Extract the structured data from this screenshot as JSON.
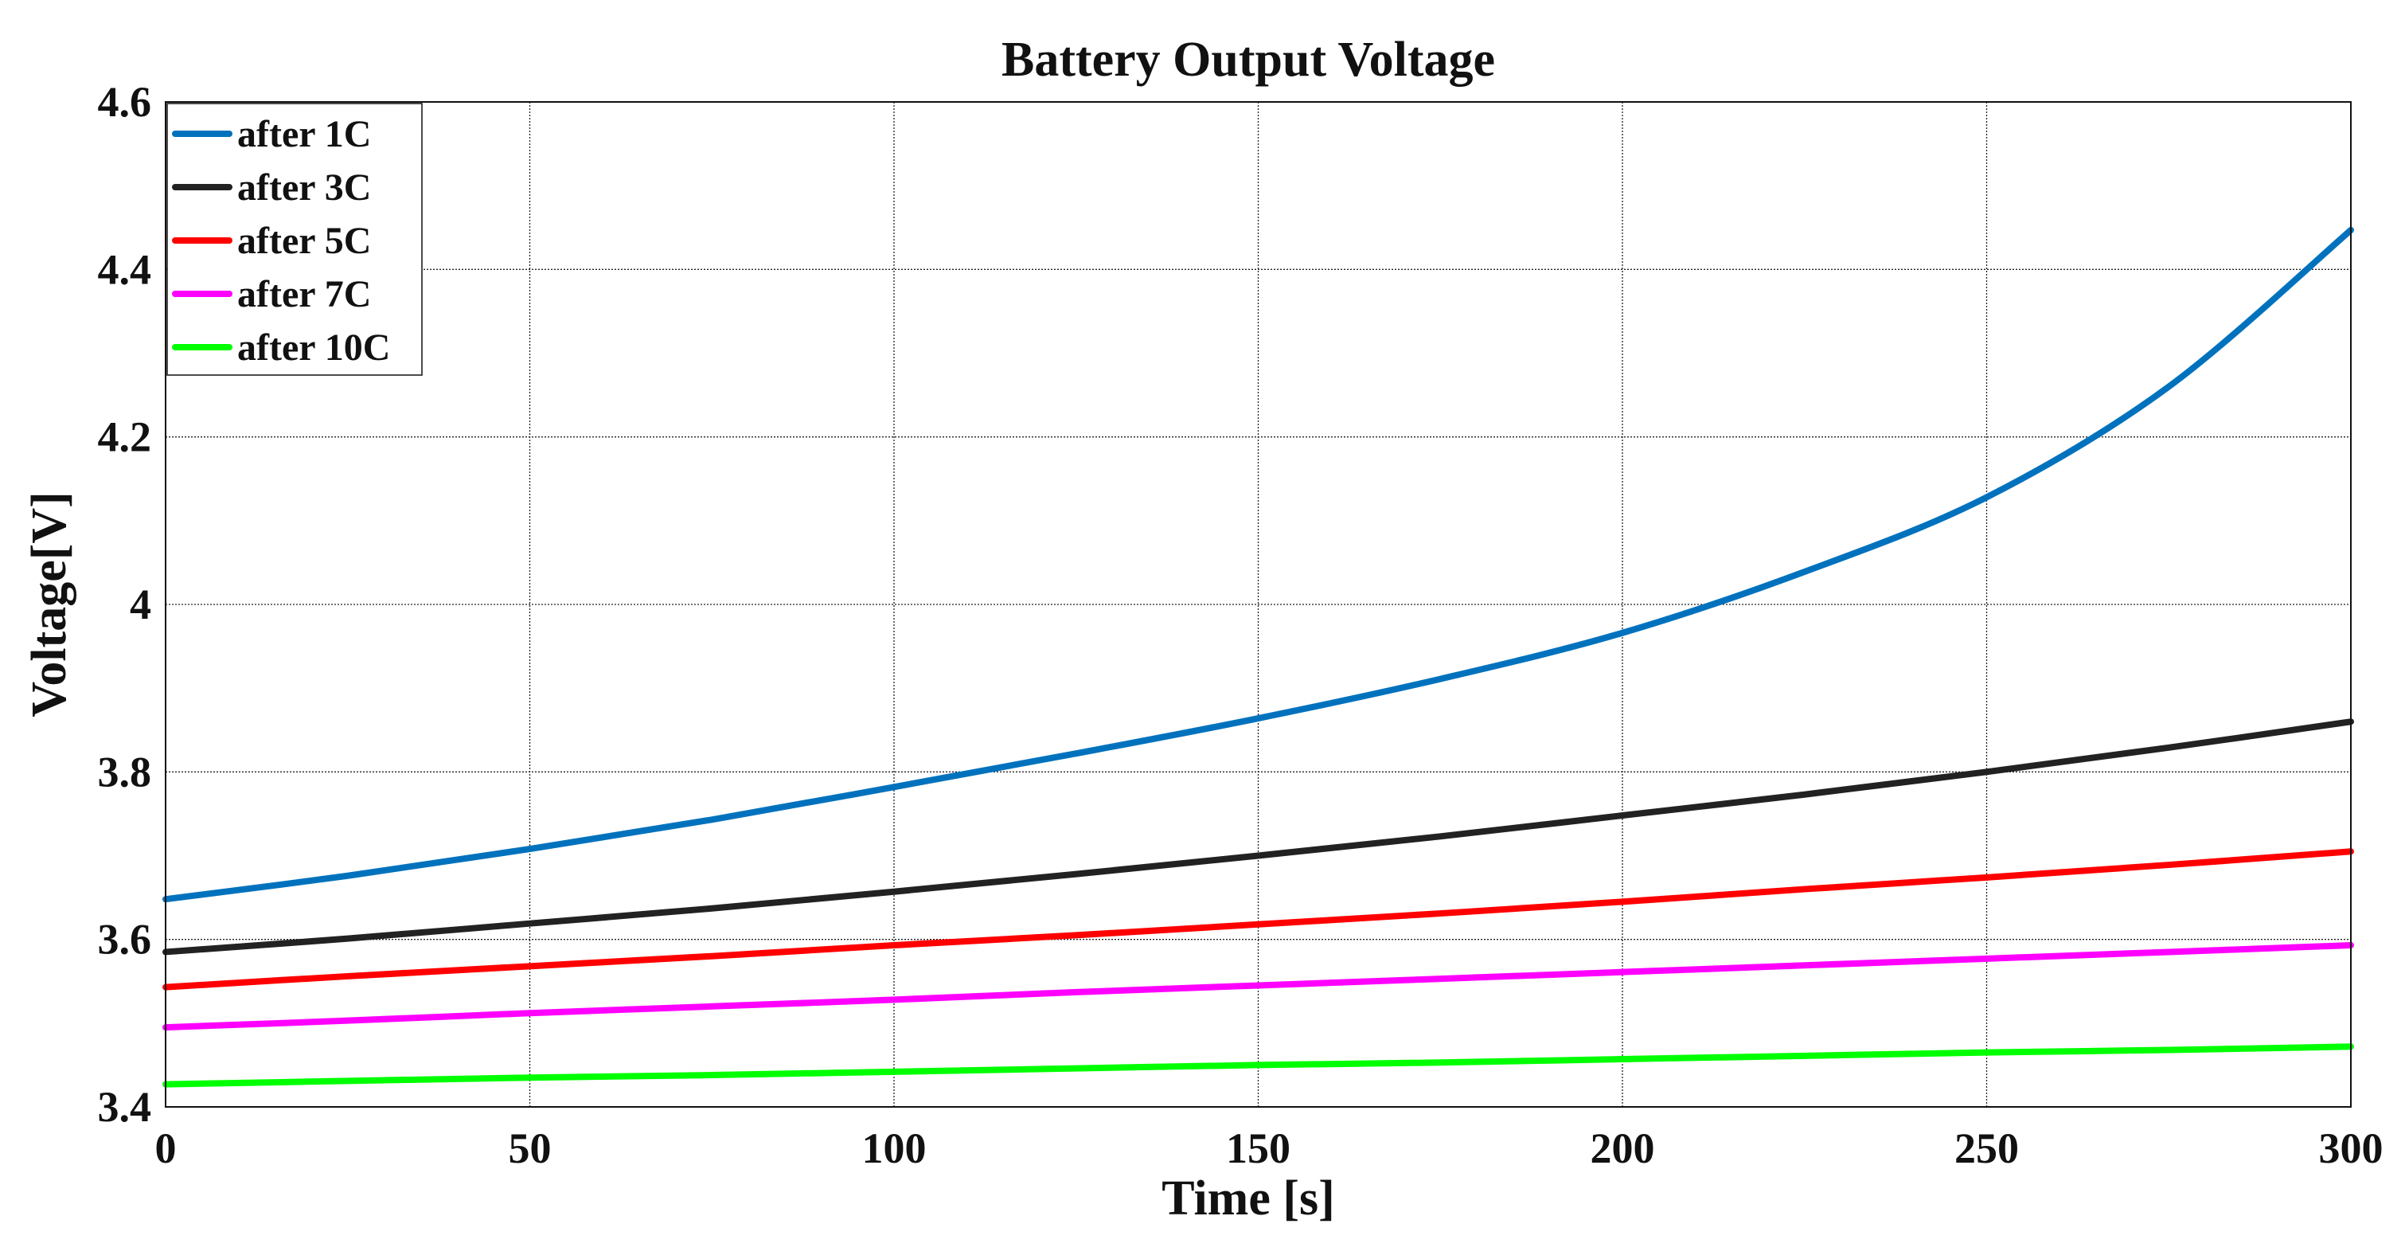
{
  "chart_data": {
    "type": "line",
    "title": "Battery Output Voltage",
    "xlabel": "Time [s]",
    "ylabel": "Voltage[V]",
    "xlim": [
      0,
      300
    ],
    "ylim": [
      3.4,
      4.6
    ],
    "xticks": [
      0,
      50,
      100,
      150,
      200,
      250,
      300
    ],
    "xtick_labels": [
      "0",
      "50",
      "100",
      "150",
      "200",
      "250",
      "300"
    ],
    "yticks": [
      3.4,
      3.6,
      3.8,
      4.0,
      4.2,
      4.4,
      4.6
    ],
    "ytick_labels": [
      "3.4",
      "3.6",
      "3.8",
      "4",
      "4.2",
      "4.4",
      "4.6"
    ],
    "grid": true,
    "legend_position": "top-left",
    "x": [
      0,
      25,
      50,
      75,
      100,
      125,
      150,
      175,
      200,
      225,
      250,
      275,
      300
    ],
    "series": [
      {
        "name": "after 1C",
        "color": "#0072bd",
        "values": [
          3.648,
          3.676,
          3.708,
          3.743,
          3.782,
          3.822,
          3.864,
          3.911,
          3.966,
          4.039,
          4.128,
          4.26,
          4.447
        ]
      },
      {
        "name": "after 3C",
        "color": "#222222",
        "values": [
          3.585,
          3.601,
          3.619,
          3.637,
          3.657,
          3.678,
          3.7,
          3.723,
          3.748,
          3.773,
          3.8,
          3.829,
          3.86
        ]
      },
      {
        "name": "after 5C",
        "color": "#ff0000",
        "values": [
          3.543,
          3.556,
          3.568,
          3.58,
          3.593,
          3.605,
          3.618,
          3.631,
          3.645,
          3.66,
          3.674,
          3.689,
          3.705
        ]
      },
      {
        "name": "after 7C",
        "color": "#ff00ff",
        "values": [
          3.495,
          3.503,
          3.512,
          3.52,
          3.528,
          3.537,
          3.545,
          3.553,
          3.561,
          3.569,
          3.577,
          3.585,
          3.593
        ]
      },
      {
        "name": "after 10C",
        "color": "#00ff00",
        "values": [
          3.427,
          3.431,
          3.435,
          3.438,
          3.442,
          3.446,
          3.45,
          3.453,
          3.457,
          3.461,
          3.465,
          3.468,
          3.472
        ]
      }
    ]
  }
}
